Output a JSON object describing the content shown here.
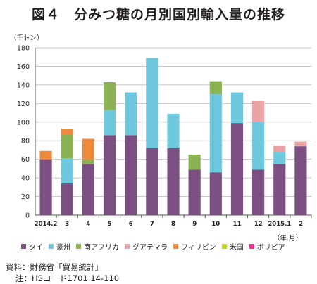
{
  "title": "図４　分みつ糖の月別国別輸入量の推移",
  "chart_data": {
    "type": "bar",
    "stacked": true,
    "y_unit": "（千トン）",
    "x_unit": "（年.月）",
    "ylim": [
      0,
      180
    ],
    "yticks": [
      0,
      20,
      40,
      60,
      80,
      100,
      120,
      140,
      160,
      180
    ],
    "grid": true,
    "legend_position": "bottom",
    "categories": [
      "2014.2",
      "3",
      "4",
      "5",
      "6",
      "7",
      "8",
      "9",
      "10",
      "11",
      "12",
      "2015.1",
      "2"
    ],
    "series": [
      {
        "name": "タイ",
        "color": "#7b4f82",
        "values": [
          60,
          34,
          55,
          86,
          86,
          72,
          72,
          49,
          46,
          99,
          49,
          55,
          74
        ]
      },
      {
        "name": "豪州",
        "color": "#6fc9de",
        "values": [
          0,
          27,
          0,
          27,
          46,
          97,
          37,
          0,
          84,
          33,
          51,
          13,
          0
        ]
      },
      {
        "name": "南アフリカ",
        "color": "#8bb253",
        "values": [
          0,
          26,
          5,
          30,
          0,
          0,
          0,
          16,
          14,
          0,
          0,
          0,
          0
        ]
      },
      {
        "name": "グアテマラ",
        "color": "#eba3a5",
        "values": [
          0,
          0,
          0,
          0,
          0,
          0,
          0,
          0,
          0,
          0,
          23,
          7,
          5
        ]
      },
      {
        "name": "フィリピン",
        "color": "#ee8a3b",
        "values": [
          9,
          6,
          22,
          0,
          0,
          0,
          0,
          0,
          0,
          0,
          0,
          0,
          0
        ]
      },
      {
        "name": "米国",
        "color": "#c7d400",
        "values": [
          0,
          0,
          0,
          0,
          0,
          0,
          0,
          0,
          0,
          0,
          0,
          0,
          0
        ]
      },
      {
        "name": "ボリビア",
        "color": "#e0338f",
        "values": [
          0,
          0,
          0,
          0,
          0,
          0,
          0,
          0,
          0,
          0,
          0,
          0,
          0
        ]
      }
    ]
  },
  "notes": {
    "source": "資料：財務省「貿易統計」",
    "note": "注：HSコード1701.14-110"
  }
}
